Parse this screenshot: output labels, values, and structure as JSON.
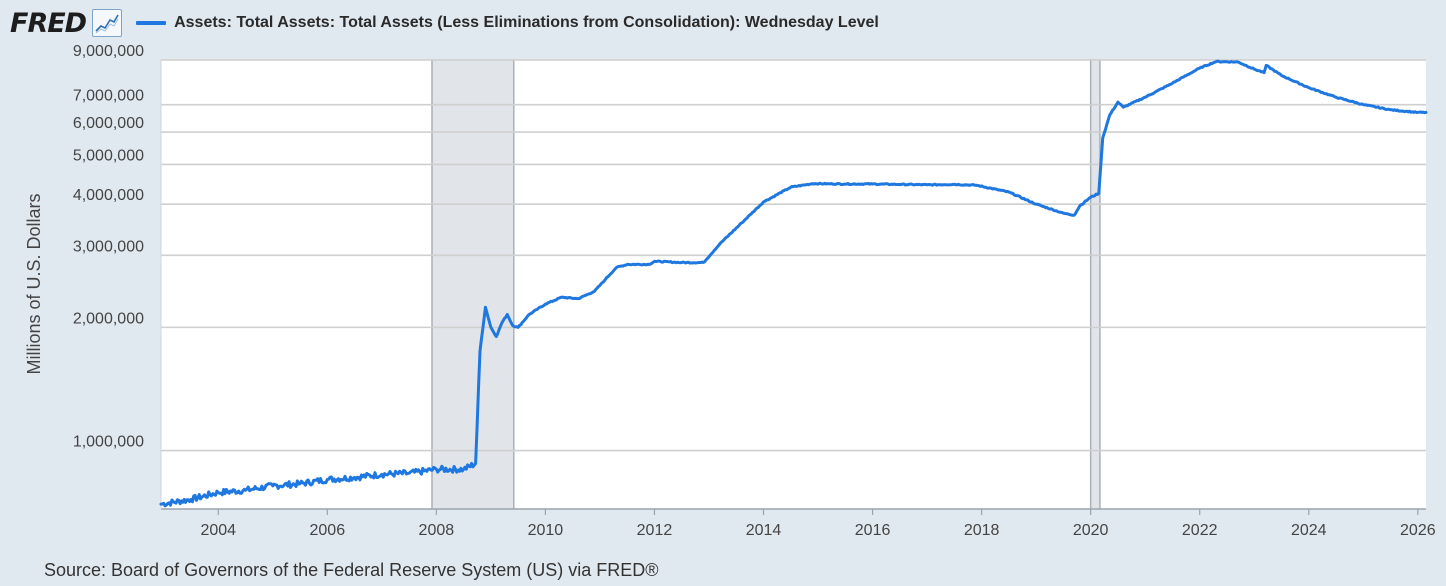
{
  "header": {
    "logo_text": "FRED",
    "logo_icon": "line-chart-icon",
    "legend_label": "Assets: Total Assets: Total Assets (Less Eliminations from Consolidation): Wednesday Level"
  },
  "source": "Source: Board of Governors of the Federal Reserve System (US) via FRED®",
  "colors": {
    "series": "#1f77e0",
    "background": "#e1e9f0",
    "plot": "#ffffff",
    "recession": "#e1e5e9",
    "grid": "#cfcfcf"
  },
  "chart_data": {
    "type": "line",
    "title": "Assets: Total Assets: Total Assets (Less Eliminations from Consolidation): Wednesday Level",
    "xlabel": "",
    "ylabel": "Millions of U.S. Dollars",
    "yscale": "log",
    "xlim": [
      2002.95,
      2026.15
    ],
    "ylim": [
      720000,
      9050000
    ],
    "grid": true,
    "x_ticks": [
      2004,
      2006,
      2008,
      2010,
      2012,
      2014,
      2016,
      2018,
      2020,
      2022,
      2024,
      2026
    ],
    "x_tick_labels": [
      "2004",
      "2006",
      "2008",
      "2010",
      "2012",
      "2014",
      "2016",
      "2018",
      "2020",
      "2022",
      "2024",
      "2026"
    ],
    "y_ticks": [
      1000000,
      2000000,
      3000000,
      4000000,
      5000000,
      6000000,
      7000000,
      9000000
    ],
    "y_tick_labels": [
      "1,000,000",
      "2,000,000",
      "3,000,000",
      "4,000,000",
      "5,000,000",
      "6,000,000",
      "7,000,000",
      "9,000,000"
    ],
    "recessions": [
      [
        2007.92,
        2009.42
      ],
      [
        2020.0,
        2020.17
      ]
    ],
    "series": [
      {
        "name": "Assets: Total Assets: Total Assets (Less Eliminations from Consolidation): Wednesday Level",
        "x": [
          2002.95,
          2003.5,
          2004.0,
          2004.5,
          2005.0,
          2005.5,
          2006.0,
          2006.5,
          2007.0,
          2007.5,
          2008.0,
          2008.5,
          2008.72,
          2008.8,
          2008.9,
          2009.0,
          2009.1,
          2009.2,
          2009.3,
          2009.4,
          2009.5,
          2009.7,
          2010.0,
          2010.3,
          2010.6,
          2010.9,
          2011.1,
          2011.3,
          2011.5,
          2011.9,
          2012.0,
          2012.5,
          2012.9,
          2013.2,
          2013.6,
          2014.0,
          2014.5,
          2014.9,
          2015.5,
          2016.0,
          2016.5,
          2017.0,
          2017.5,
          2017.9,
          2018.5,
          2019.0,
          2019.5,
          2019.7,
          2019.8,
          2020.0,
          2020.15,
          2020.22,
          2020.35,
          2020.5,
          2020.6,
          2021.0,
          2021.5,
          2022.0,
          2022.3,
          2022.7,
          2023.0,
          2023.18,
          2023.22,
          2023.5,
          2024.0,
          2024.5,
          2025.0,
          2025.5,
          2026.0,
          2026.15
        ],
        "values": [
          740000,
          760000,
          790000,
          800000,
          820000,
          830000,
          850000,
          860000,
          875000,
          880000,
          900000,
          900000,
          930000,
          1750000,
          2240000,
          2000000,
          1900000,
          2050000,
          2150000,
          2020000,
          2000000,
          2150000,
          2280000,
          2370000,
          2350000,
          2450000,
          2620000,
          2800000,
          2850000,
          2850000,
          2900000,
          2880000,
          2880000,
          3200000,
          3600000,
          4050000,
          4400000,
          4490000,
          4480000,
          4480000,
          4470000,
          4460000,
          4470000,
          4450000,
          4280000,
          4000000,
          3800000,
          3760000,
          3960000,
          4160000,
          4250000,
          5800000,
          6600000,
          7100000,
          6900000,
          7300000,
          7900000,
          8600000,
          8920000,
          8900000,
          8550000,
          8380000,
          8730000,
          8250000,
          7700000,
          7300000,
          7000000,
          6800000,
          6700000,
          6700000
        ]
      }
    ]
  }
}
